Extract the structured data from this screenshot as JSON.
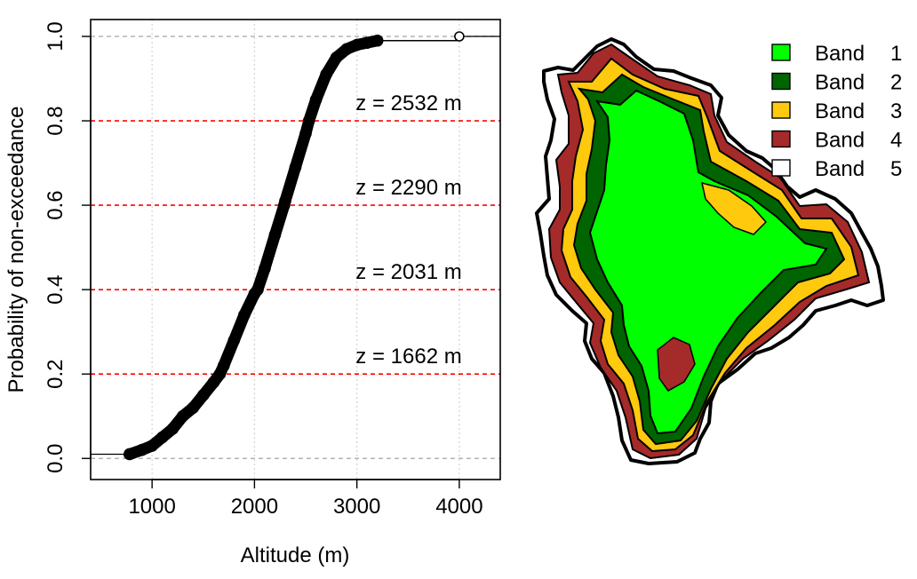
{
  "chart_data": [
    {
      "type": "scatter",
      "title": "",
      "xlabel": "Altitude (m)",
      "ylabel": "Probability of non-exceedance",
      "xlim": [
        400,
        4400
      ],
      "ylim": [
        -0.05,
        1.04
      ],
      "xticks": [
        1000,
        2000,
        3000,
        4000
      ],
      "yticks": [
        0.0,
        0.2,
        0.4,
        0.6,
        0.8,
        1.0
      ],
      "x_grid": true,
      "series": [
        {
          "curve": "cumulative-distribution",
          "x": [
            780,
            900,
            1000,
            1100,
            1200,
            1300,
            1400,
            1500,
            1600,
            1662,
            1700,
            1800,
            1900,
            2000,
            2031,
            2100,
            2200,
            2290,
            2300,
            2400,
            2500,
            2532,
            2600,
            2700,
            2800,
            2900,
            3000,
            3100,
            3200,
            4000
          ],
          "y": [
            0.01,
            0.02,
            0.03,
            0.05,
            0.07,
            0.1,
            0.12,
            0.15,
            0.18,
            0.2,
            0.22,
            0.28,
            0.34,
            0.39,
            0.4,
            0.45,
            0.53,
            0.6,
            0.61,
            0.69,
            0.77,
            0.8,
            0.85,
            0.91,
            0.95,
            0.97,
            0.98,
            0.985,
            0.99,
            1.0
          ]
        }
      ],
      "thresholds": [
        {
          "p": 0.2,
          "label": "z = 1662 m"
        },
        {
          "p": 0.4,
          "label": "z = 2031 m"
        },
        {
          "p": 0.6,
          "label": "z = 2290 m"
        },
        {
          "p": 0.8,
          "label": "z = 2532 m"
        }
      ],
      "reference_lines": [
        0.0,
        1.0
      ],
      "colors": {
        "threshold": "#ff0000",
        "reference": "#b3b3b3",
        "points": "#000000",
        "grid": "#d3d3d3"
      }
    },
    {
      "type": "map",
      "legend": {
        "position": "top-right",
        "entries": [
          {
            "label": "Band",
            "number": "1",
            "color": "#00ff00"
          },
          {
            "label": "Band",
            "number": "2",
            "color": "#006400"
          },
          {
            "label": "Band",
            "number": "3",
            "color": "#ffc90e"
          },
          {
            "label": "Band",
            "number": "4",
            "color": "#a52a2a"
          },
          {
            "label": "Band",
            "number": "5",
            "color": "#ffffff"
          }
        ]
      }
    }
  ]
}
